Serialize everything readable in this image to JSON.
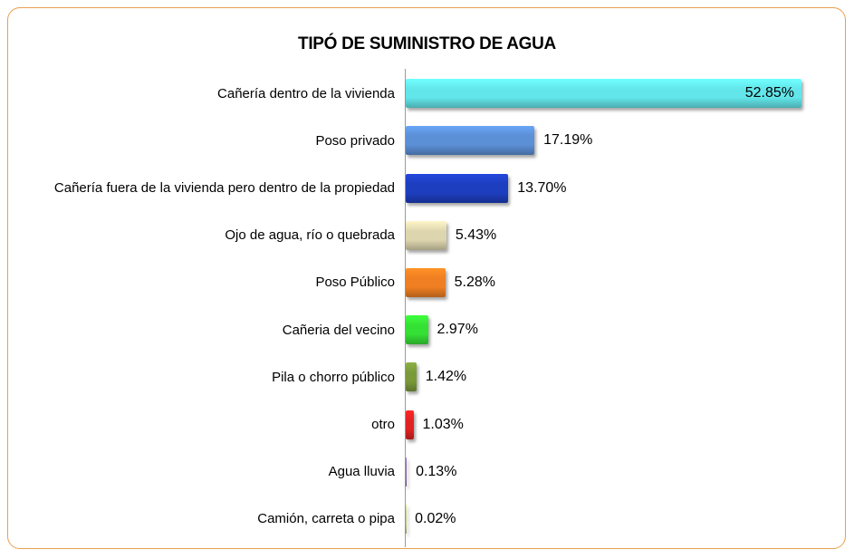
{
  "chart_data": {
    "type": "bar",
    "orientation": "horizontal",
    "title": "TIPÓ DE SUMINISTRO DE AGUA",
    "categories": [
      "Cañería dentro de la vivienda",
      "Poso privado",
      "Cañería fuera de la vivienda pero dentro de la propiedad",
      "Ojo de agua, río o quebrada",
      "Poso Público",
      "Cañeria del vecino",
      "Pila o chorro público",
      "otro",
      "Agua lluvia",
      "Camión, carreta o pipa"
    ],
    "values": [
      52.85,
      17.19,
      13.7,
      5.43,
      5.28,
      2.97,
      1.42,
      1.03,
      0.13,
      0.02
    ],
    "value_labels": [
      "52.85%",
      "17.19%",
      "13.70%",
      "5.43%",
      "5.28%",
      "2.97%",
      "1.42%",
      "1.03%",
      "0.13%",
      "0.02%"
    ],
    "colors": [
      "#62e6ea",
      "#5b8fd6",
      "#1e3ec0",
      "#ddd5ae",
      "#ef7f22",
      "#35e035",
      "#7a9a3a",
      "#e02222",
      "#8a6aa8",
      "#c2d088"
    ]
  }
}
